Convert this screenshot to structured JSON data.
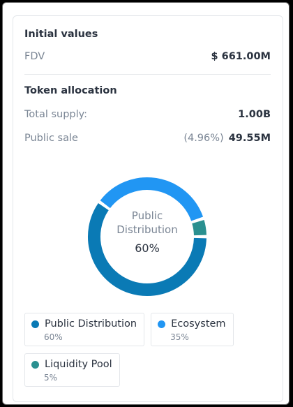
{
  "card": {
    "initial_title": "Initial values",
    "fdv_label": "FDV",
    "fdv_value": "$ 661.00M",
    "allocation_title": "Token allocation",
    "supply_label": "Total supply:",
    "supply_value": "1.00B",
    "sale_label": "Public sale",
    "sale_percent": "(4.96%)",
    "sale_value": "49.55M"
  },
  "chart_data": {
    "type": "pie",
    "categories": [
      "Public Distribution",
      "Ecosystem",
      "Liquidity Pool"
    ],
    "values": [
      60,
      35,
      5
    ],
    "value_labels": [
      "60%",
      "35%",
      "5%"
    ],
    "colors": [
      "#0a7ab5",
      "#2196f3",
      "#2a9090"
    ]
  }
}
